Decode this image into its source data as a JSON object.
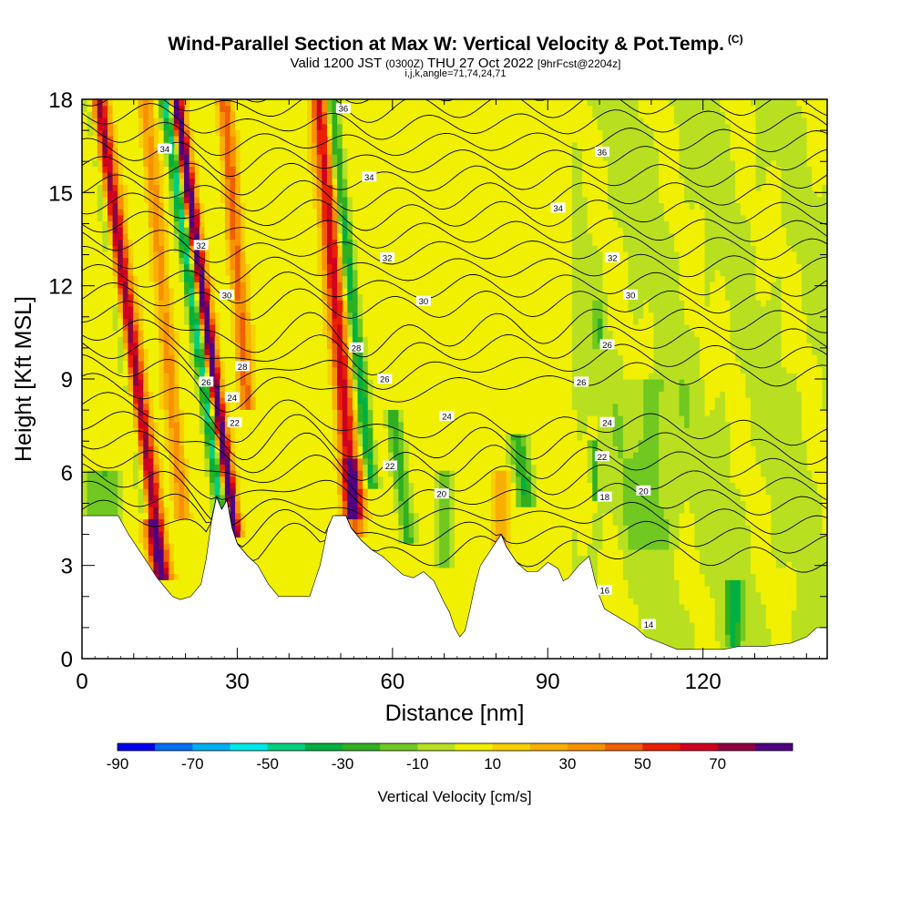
{
  "title_main": "Wind-Parallel Section at Max W: Vertical Velocity & Pot.Temp.",
  "title_main_suffix": "(C)",
  "title_valid_pre": "Valid 1200 JST",
  "title_valid_utc": "(0300Z)",
  "title_valid_date": "THU 27 Oct 2022",
  "title_valid_fcst": "[9hrFcst@2204z]",
  "title_sub": "i,j,k,angle=71,74,24,71",
  "chart_data": {
    "type": "heatmap",
    "xlabel": "Distance [nm]",
    "ylabel": "Height [Kft MSL]",
    "xlim": [
      0,
      144
    ],
    "ylim": [
      0,
      18
    ],
    "xticks": [
      "0",
      "30",
      "60",
      "90",
      "120"
    ],
    "yticks": [
      "0",
      "3",
      "6",
      "9",
      "12",
      "15",
      "18"
    ],
    "colorbar": {
      "label": "Vertical Velocity [cm/s]",
      "levels": [
        -90,
        -80,
        -70,
        -60,
        -50,
        -40,
        -30,
        -20,
        -10,
        0,
        10,
        20,
        30,
        40,
        50,
        60,
        70,
        80
      ],
      "tick_labels": [
        "-90",
        "-70",
        "-50",
        "-30",
        "-10",
        "10",
        "30",
        "50",
        "70"
      ],
      "colors": [
        "#0000f0",
        "#0070f0",
        "#00b0f0",
        "#00e8e8",
        "#00d080",
        "#00b040",
        "#30b020",
        "#70c820",
        "#b8e020",
        "#f0f000",
        "#f8d000",
        "#f8b000",
        "#f89000",
        "#f06000",
        "#e82000",
        "#d00020",
        "#900040",
        "#500080"
      ]
    },
    "contours": {
      "field": "Pot.Temp. (C)",
      "labels": [
        {
          "text": "36",
          "x": 50.5,
          "y": 17.7
        },
        {
          "text": "34",
          "x": 16,
          "y": 16.4
        },
        {
          "text": "36",
          "x": 100.5,
          "y": 16.3
        },
        {
          "text": "34",
          "x": 55.5,
          "y": 15.5
        },
        {
          "text": "34",
          "x": 92,
          "y": 14.5
        },
        {
          "text": "32",
          "x": 23,
          "y": 13.3
        },
        {
          "text": "32",
          "x": 59,
          "y": 12.9
        },
        {
          "text": "32",
          "x": 102.5,
          "y": 12.9
        },
        {
          "text": "30",
          "x": 28,
          "y": 11.7
        },
        {
          "text": "30",
          "x": 66,
          "y": 11.5
        },
        {
          "text": "30",
          "x": 106,
          "y": 11.7
        },
        {
          "text": "28",
          "x": 53,
          "y": 10.0
        },
        {
          "text": "26",
          "x": 101.5,
          "y": 10.1
        },
        {
          "text": "28",
          "x": 31,
          "y": 9.4
        },
        {
          "text": "26",
          "x": 24,
          "y": 8.9
        },
        {
          "text": "26",
          "x": 58.5,
          "y": 9.0
        },
        {
          "text": "26",
          "x": 96.5,
          "y": 8.9
        },
        {
          "text": "24",
          "x": 29,
          "y": 8.4
        },
        {
          "text": "22",
          "x": 29.5,
          "y": 7.6
        },
        {
          "text": "24",
          "x": 70.5,
          "y": 7.8
        },
        {
          "text": "24",
          "x": 101.5,
          "y": 7.6
        },
        {
          "text": "22",
          "x": 59.5,
          "y": 6.2
        },
        {
          "text": "22",
          "x": 100.5,
          "y": 6.5
        },
        {
          "text": "20",
          "x": 69.5,
          "y": 5.3
        },
        {
          "text": "20",
          "x": 108.5,
          "y": 5.4
        },
        {
          "text": "18",
          "x": 101,
          "y": 5.2
        },
        {
          "text": "16",
          "x": 101,
          "y": 2.2
        },
        {
          "text": "14",
          "x": 109.5,
          "y": 1.1
        }
      ]
    }
  }
}
